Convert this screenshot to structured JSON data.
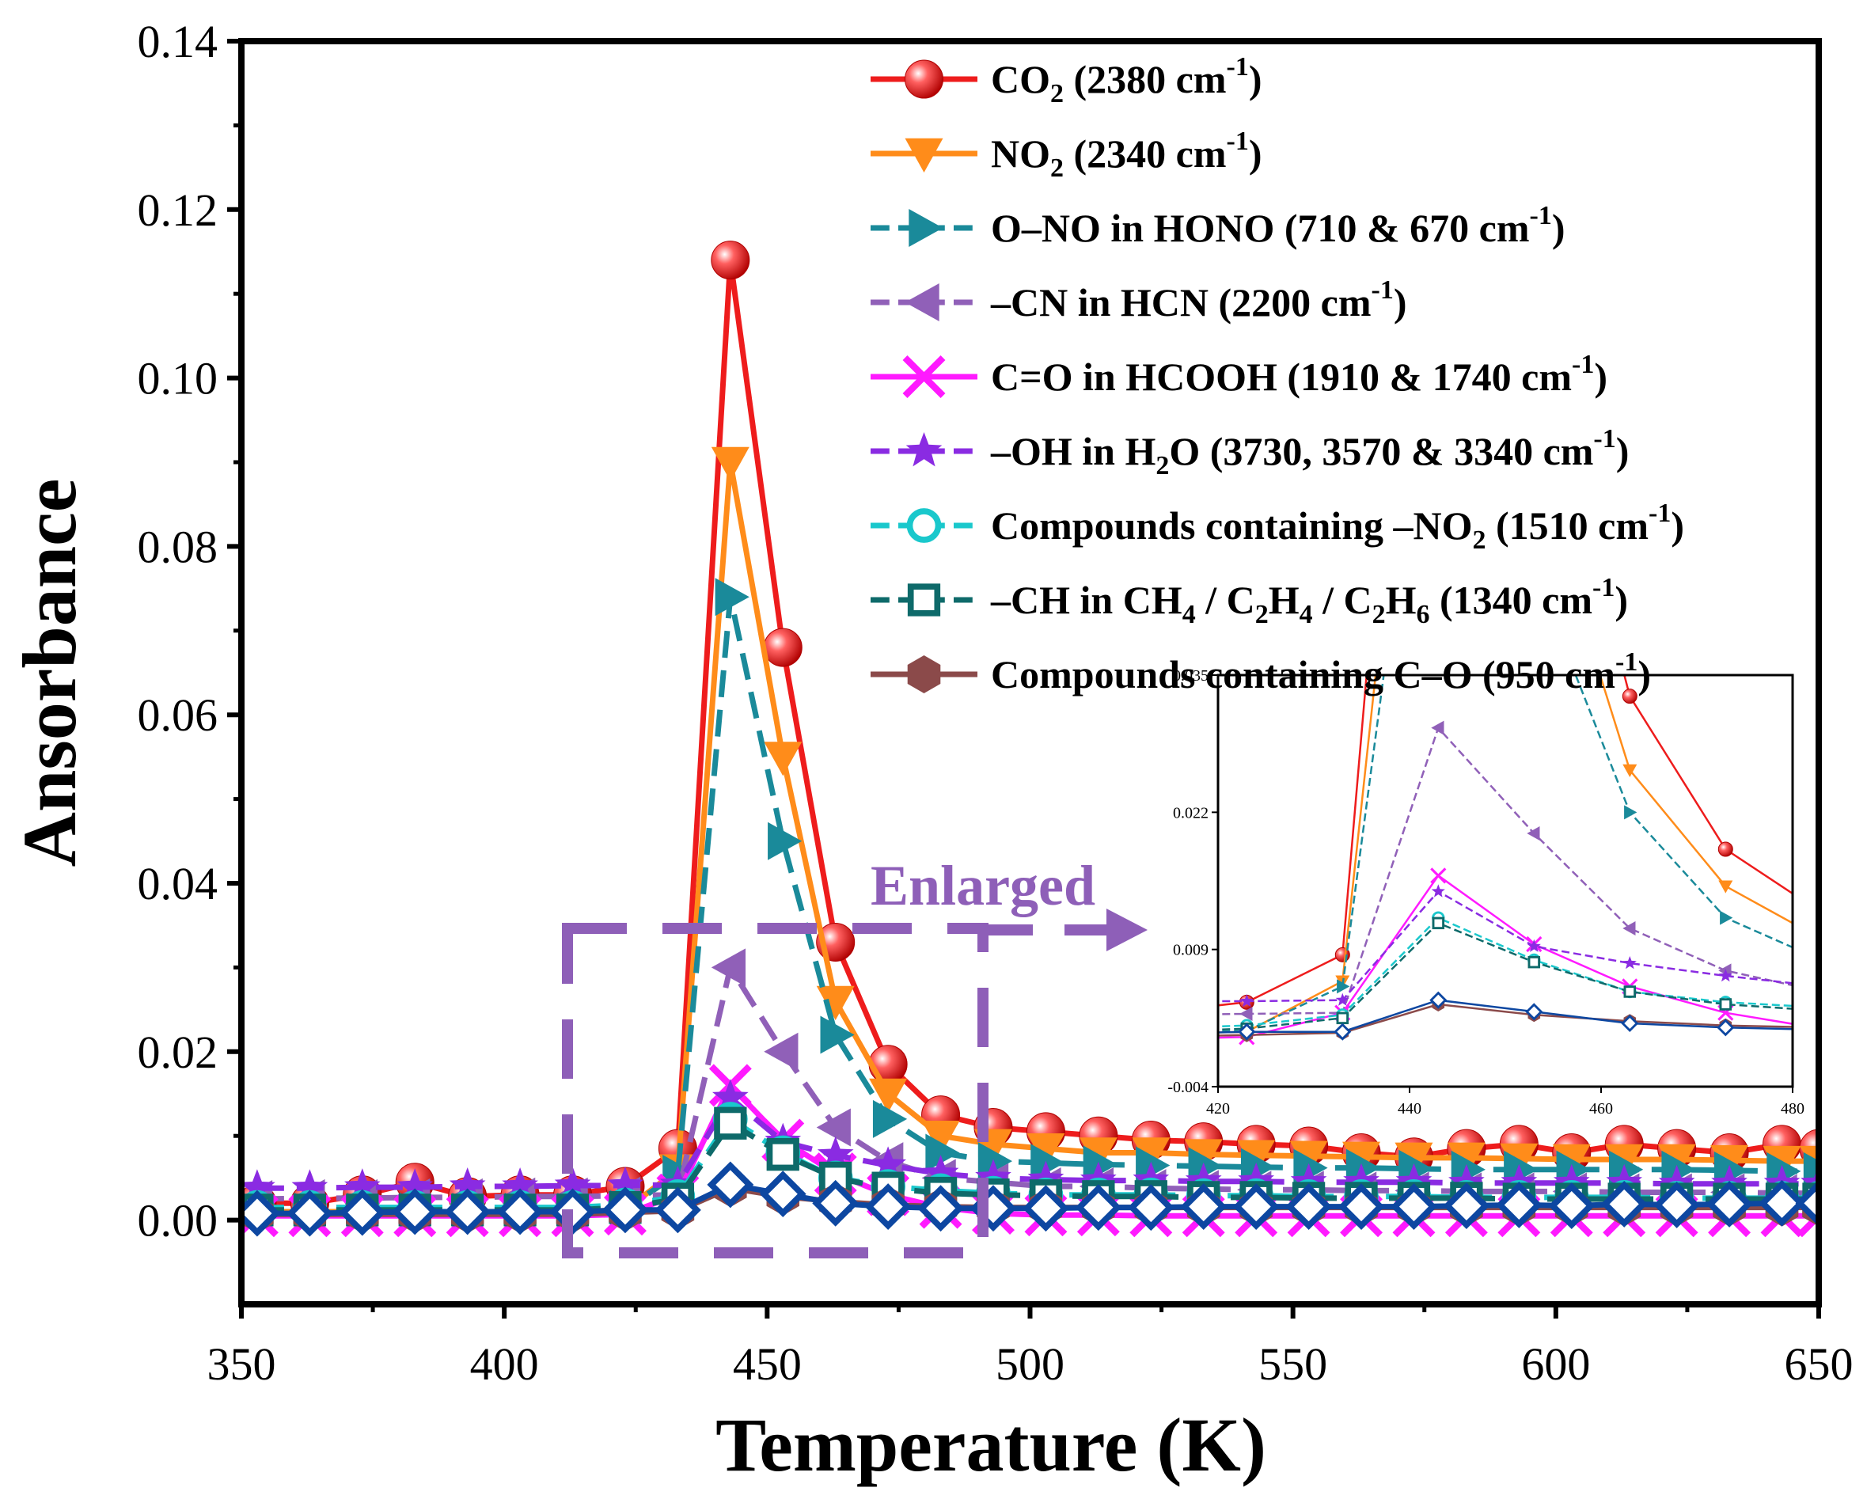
{
  "chart_data": {
    "type": "line",
    "title": "",
    "xlabel": "Temperature (K)",
    "ylabel": "Ansorbance",
    "xlim": [
      350,
      650
    ],
    "ylim": [
      -0.01,
      0.14
    ],
    "xticks": [
      "350",
      "400",
      "450",
      "500",
      "550",
      "600",
      "650"
    ],
    "yticks": [
      "0.00",
      "0.02",
      "0.04",
      "0.06",
      "0.08",
      "0.10",
      "0.12",
      "0.14"
    ],
    "x": [
      353,
      363,
      373,
      383,
      393,
      403,
      413,
      423,
      433,
      443,
      453,
      463,
      473,
      483,
      493,
      503,
      513,
      523,
      533,
      543,
      553,
      563,
      573,
      583,
      593,
      603,
      613,
      623,
      633,
      643,
      650
    ],
    "legend_position": "top-right",
    "series": [
      {
        "name": "CO2 (2380 cm-1)",
        "legend": {
          "main": "CO",
          "sub": "2",
          "tail": " (2380 cm",
          "sup": "-1",
          "end": ")"
        },
        "color": "#ee1c1c",
        "marker": "sphere",
        "dash": "solid",
        "values": [
          0.002,
          0.002,
          0.003,
          0.0045,
          0.0028,
          0.003,
          0.003,
          0.004,
          0.0085,
          0.114,
          0.068,
          0.033,
          0.0185,
          0.0125,
          0.011,
          0.0105,
          0.01,
          0.0095,
          0.0093,
          0.009,
          0.0088,
          0.008,
          0.0075,
          0.0085,
          0.009,
          0.008,
          0.009,
          0.0085,
          0.008,
          0.009,
          0.0085
        ]
      },
      {
        "name": "NO2 (2340 cm-1)",
        "legend": {
          "main": "NO",
          "sub": "2",
          "tail": " (2340 cm",
          "sup": "-1",
          "end": ")"
        },
        "color": "#ff8c1a",
        "marker": "triangle-down",
        "dash": "solid",
        "values": [
          0.001,
          0.001,
          0.001,
          0.001,
          0.001,
          0.001,
          0.001,
          0.0012,
          0.006,
          0.09,
          0.055,
          0.026,
          0.015,
          0.01,
          0.009,
          0.0085,
          0.008,
          0.008,
          0.0078,
          0.0077,
          0.0076,
          0.0075,
          0.0074,
          0.0074,
          0.0073,
          0.0072,
          0.0072,
          0.0072,
          0.0071,
          0.007,
          0.007
        ]
      },
      {
        "name": "O–NO in HONO (710 & 670 cm-1)",
        "legend": {
          "main": "O–NO in HONO (710 & 670 cm",
          "sup": "-1",
          "end": ")"
        },
        "color": "#1a8a9a",
        "marker": "triangle-right",
        "dash": "dash",
        "values": [
          0.001,
          0.001,
          0.001,
          0.001,
          0.001,
          0.001,
          0.001,
          0.0013,
          0.0055,
          0.074,
          0.045,
          0.022,
          0.012,
          0.008,
          0.007,
          0.0068,
          0.0066,
          0.0065,
          0.0064,
          0.0063,
          0.0062,
          0.0062,
          0.0061,
          0.006,
          0.006,
          0.006,
          0.006,
          0.006,
          0.0059,
          0.0058,
          0.0058
        ]
      },
      {
        "name": "–CN in HCN (2200 cm-1)",
        "legend": {
          "main": "–CN in HCN (2200 cm",
          "sup": "-1",
          "end": ")"
        },
        "color": "#9060b8",
        "marker": "triangle-left",
        "dash": "dash",
        "values": [
          0.0025,
          0.0026,
          0.0026,
          0.0027,
          0.0027,
          0.0028,
          0.0028,
          0.0029,
          0.003,
          0.03,
          0.02,
          0.011,
          0.007,
          0.005,
          0.0045,
          0.004,
          0.004,
          0.0038,
          0.0037,
          0.0036,
          0.0036,
          0.0035,
          0.0035,
          0.0034,
          0.0034,
          0.0034,
          0.0033,
          0.0033,
          0.0033,
          0.0032,
          0.0032
        ]
      },
      {
        "name": "C=O in HCOOH (1910 & 1740 cm-1)",
        "legend": {
          "main": "C=O in HCOOH (1910 & 1740 cm",
          "sup": "-1",
          "end": ")"
        },
        "color": "#ff1aff",
        "marker": "x",
        "dash": "solid",
        "values": [
          0.0005,
          0.0005,
          0.0005,
          0.0005,
          0.0005,
          0.0005,
          0.0005,
          0.0007,
          0.003,
          0.016,
          0.0095,
          0.0055,
          0.003,
          0.0015,
          0.0008,
          0.0006,
          0.0006,
          0.0005,
          0.0005,
          0.0005,
          0.0005,
          0.0005,
          0.0005,
          0.0005,
          0.0005,
          0.0005,
          0.0005,
          0.0005,
          0.0005,
          0.0005,
          0.0005
        ]
      },
      {
        "name": "–OH in H2O (3730, 3570 & 3340 cm-1)",
        "legend": {
          "main": "–OH in H",
          "sub": "2",
          "tail": "O (3730, 3570 & 3340 cm",
          "sup": "-1",
          "end": ")"
        },
        "color": "#8a2be2",
        "marker": "star",
        "dash": "dash",
        "values": [
          0.0038,
          0.0038,
          0.0039,
          0.0039,
          0.004,
          0.004,
          0.0041,
          0.0041,
          0.0042,
          0.0145,
          0.0093,
          0.0077,
          0.0065,
          0.0055,
          0.005,
          0.0048,
          0.0047,
          0.0047,
          0.0046,
          0.0046,
          0.0045,
          0.0045,
          0.0045,
          0.0044,
          0.0044,
          0.0044,
          0.0044,
          0.0043,
          0.0043,
          0.0043,
          0.0043
        ]
      },
      {
        "name": "Compounds containing –NO2 (1510 cm-1)",
        "legend": {
          "main": "Compounds containing –NO",
          "sub": "2",
          "tail": " (1510 cm",
          "sup": "-1",
          "end": ")"
        },
        "color": "#1ac8cc",
        "marker": "circle-open",
        "dash": "dash",
        "values": [
          0.0015,
          0.0015,
          0.0015,
          0.0015,
          0.0015,
          0.0015,
          0.0015,
          0.0018,
          0.0028,
          0.012,
          0.008,
          0.005,
          0.004,
          0.0035,
          0.0032,
          0.003,
          0.003,
          0.003,
          0.0029,
          0.0029,
          0.0028,
          0.0028,
          0.0028,
          0.0027,
          0.0027,
          0.0027,
          0.0027,
          0.0026,
          0.0026,
          0.0026,
          0.0026
        ]
      },
      {
        "name": "–CH in CH4 / C2H4 / C2H6 (1340 cm-1)",
        "legend": {
          "main": "–CH in CH",
          "sub": "4",
          "tail": " / C",
          "sub2": "2",
          "tail2": "H",
          "sub3": "4",
          "tail3": " / C",
          "sub4": "2",
          "tail4": "H",
          "sub5": "6",
          "tail5": " (1340 cm",
          "sup": "-1",
          "end": ")"
        },
        "color": "#0e6a6a",
        "marker": "square-open",
        "dash": "dash",
        "values": [
          0.0012,
          0.0012,
          0.0012,
          0.0012,
          0.0012,
          0.0012,
          0.0012,
          0.0015,
          0.0025,
          0.0115,
          0.0078,
          0.005,
          0.0038,
          0.0032,
          0.003,
          0.0029,
          0.0028,
          0.0028,
          0.0027,
          0.0027,
          0.0026,
          0.0026,
          0.0026,
          0.0026,
          0.0025,
          0.0025,
          0.0025,
          0.0025,
          0.0025,
          0.0025,
          0.0025
        ]
      },
      {
        "name": "Compounds containing C–O (950 cm-1)",
        "legend": {
          "main": "Compounds containing C–O (950 cm",
          "sup": "-1",
          "end": ")"
        },
        "color": "#8b4a4a",
        "marker": "hexagon",
        "dash": "solid",
        "values": [
          0.0007,
          0.0007,
          0.0007,
          0.0007,
          0.0007,
          0.0007,
          0.0007,
          0.0009,
          0.0011,
          0.0038,
          0.0028,
          0.0022,
          0.0018,
          0.0016,
          0.0015,
          0.0015,
          0.0015,
          0.0015,
          0.0015,
          0.0015,
          0.0015,
          0.0015,
          0.0015,
          0.0015,
          0.0015,
          0.0015,
          0.0015,
          0.0015,
          0.0015,
          0.0015,
          0.0015
        ]
      },
      {
        "name": "",
        "legend": null,
        "color": "#0d47a1",
        "marker": "diamond-open",
        "dash": "solid",
        "values": [
          0.0008,
          0.0008,
          0.0009,
          0.001,
          0.001,
          0.001,
          0.001,
          0.0012,
          0.0012,
          0.0042,
          0.0031,
          0.002,
          0.0016,
          0.0014,
          0.0014,
          0.0014,
          0.0015,
          0.0015,
          0.0016,
          0.0016,
          0.0016,
          0.0016,
          0.0016,
          0.0017,
          0.0018,
          0.0017,
          0.0019,
          0.0018,
          0.0019,
          0.002,
          0.002
        ]
      }
    ],
    "inset": {
      "xlim": [
        420,
        480
      ],
      "ylim": [
        -0.004,
        0.035
      ],
      "xticks": [
        "420",
        "440",
        "460",
        "480"
      ],
      "yticks": [
        "-0.004",
        "0.009",
        "0.022",
        "0.035"
      ]
    },
    "annotation": {
      "text": "Enlarged",
      "color": "#8e5fb8"
    }
  }
}
